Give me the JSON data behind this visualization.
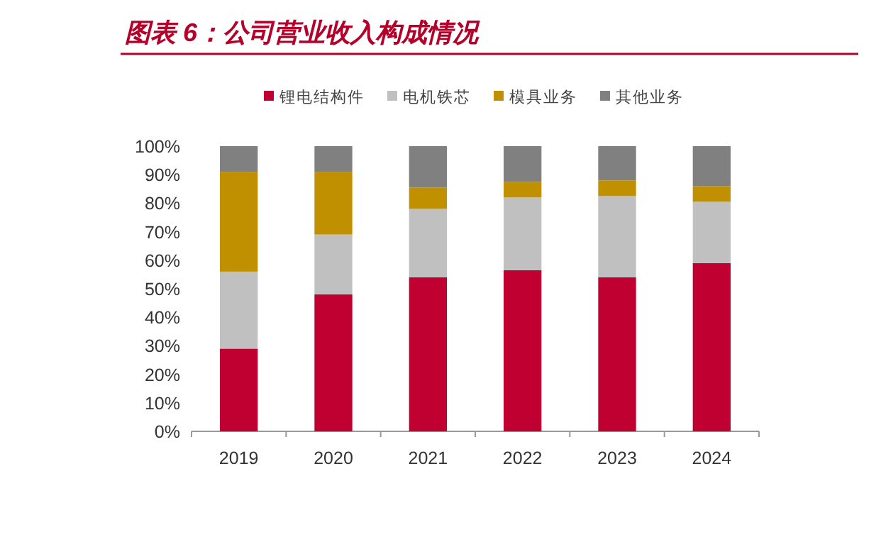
{
  "chart_data": {
    "type": "bar",
    "stacked": true,
    "title": "图表 6：公司营业收入构成情况",
    "categories": [
      "2019",
      "2020",
      "2021",
      "2022",
      "2023",
      "2024"
    ],
    "series": [
      {
        "name": "锂电结构件",
        "color": "#c00030",
        "values": [
          29,
          48,
          54,
          56.5,
          54,
          59
        ]
      },
      {
        "name": "电机铁芯",
        "color": "#c0c0c0",
        "values": [
          27,
          21,
          24,
          25.5,
          28.5,
          21.5
        ]
      },
      {
        "name": "模具业务",
        "color": "#c09000",
        "values": [
          35,
          22,
          7.5,
          5.5,
          5.5,
          5.5
        ]
      },
      {
        "name": "其他业务",
        "color": "#808080",
        "values": [
          9,
          9,
          14.5,
          12.5,
          12,
          14
        ]
      }
    ],
    "ylim": [
      0,
      100
    ],
    "yticks": [
      {
        "value": 0,
        "label": "0%"
      },
      {
        "value": 10,
        "label": "10%"
      },
      {
        "value": 20,
        "label": "20%"
      },
      {
        "value": 30,
        "label": "30%"
      },
      {
        "value": 40,
        "label": "40%"
      },
      {
        "value": 50,
        "label": "50%"
      },
      {
        "value": 60,
        "label": "60%"
      },
      {
        "value": 70,
        "label": "70%"
      },
      {
        "value": 80,
        "label": "80%"
      },
      {
        "value": 90,
        "label": "90%"
      },
      {
        "value": 100,
        "label": "100%"
      }
    ],
    "grid": false,
    "legend": "top"
  }
}
